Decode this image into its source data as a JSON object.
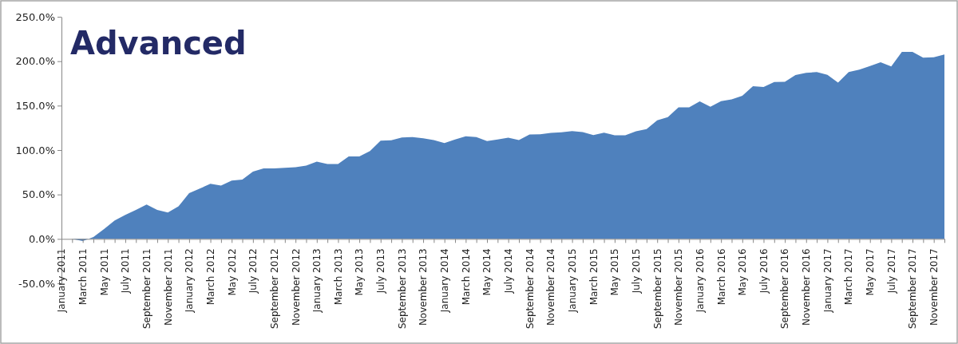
{
  "chart_data": {
    "type": "area",
    "title": "Advanced",
    "categories": [
      "January 2011",
      null,
      "March 2011",
      null,
      "May 2011",
      null,
      "July 2011",
      null,
      "September 2011",
      null,
      "November 2011",
      null,
      "January 2012",
      null,
      "March 2012",
      null,
      "May 2012",
      null,
      "July 2012",
      null,
      "September 2012",
      null,
      "November 2012",
      null,
      "January 2013",
      null,
      "March 2013",
      null,
      "May 2013",
      null,
      "July 2013",
      null,
      "September 2013",
      null,
      "November 2013",
      null,
      "January 2014",
      null,
      "March 2014",
      null,
      "May 2014",
      null,
      "July 2014",
      null,
      "September 2014",
      null,
      "November 2014",
      null,
      "January 2015",
      null,
      "March 2015",
      null,
      "May 2015",
      null,
      "July 2015",
      null,
      "September 2015",
      null,
      "November 2015",
      null,
      "January 2016",
      null,
      "March 2016",
      null,
      "May 2016",
      null,
      "July 2016",
      null,
      "September 2016",
      null,
      "November 2016",
      null,
      "January 2017",
      null,
      "March 2017",
      null,
      "May 2017",
      null,
      "July 2017",
      null,
      "September 2017",
      null,
      "November 2017",
      null
    ],
    "series": [
      {
        "color": "#4f81bd",
        "values": [
          0,
          0,
          -2.4,
          2,
          11,
          20.7,
          27,
          32.6,
          38.7,
          32.6,
          29.7,
          36.6,
          51.5,
          56.7,
          62,
          60,
          65.6,
          66.8,
          75.8,
          79.4,
          79.4,
          80,
          80.6,
          82.4,
          87,
          84.2,
          84.2,
          92.9,
          92.9,
          98.9,
          110.6,
          110.9,
          114.2,
          114.5,
          113.3,
          111.2,
          107.9,
          112,
          115.4,
          114.5,
          110,
          112,
          113.9,
          111.2,
          117.5,
          117.8,
          119.3,
          119.9,
          121.4,
          120.2,
          116.9,
          119.6,
          116.6,
          116.6,
          121.1,
          123.5,
          133.4,
          137,
          148.1,
          148.1,
          154.7,
          148.7,
          155,
          157.1,
          161,
          171.8,
          170.9,
          176.6,
          176.9,
          184.4,
          187,
          187.7,
          184.6,
          176,
          187.7,
          190.6,
          194.5,
          198.7,
          194,
          210.4,
          210.4,
          203.9,
          204.5,
          207.5
        ]
      }
    ],
    "ylim": [
      -50,
      250
    ],
    "yticks": [
      {
        "value": -50,
        "label": "-50.0%"
      },
      {
        "value": 0,
        "label": "0.0%"
      },
      {
        "value": 50,
        "label": "50.0%"
      },
      {
        "value": 100,
        "label": "100.0%"
      },
      {
        "value": 150,
        "label": "150.0%"
      },
      {
        "value": 200,
        "label": "200.0%"
      },
      {
        "value": 250,
        "label": "250.0%"
      }
    ]
  }
}
